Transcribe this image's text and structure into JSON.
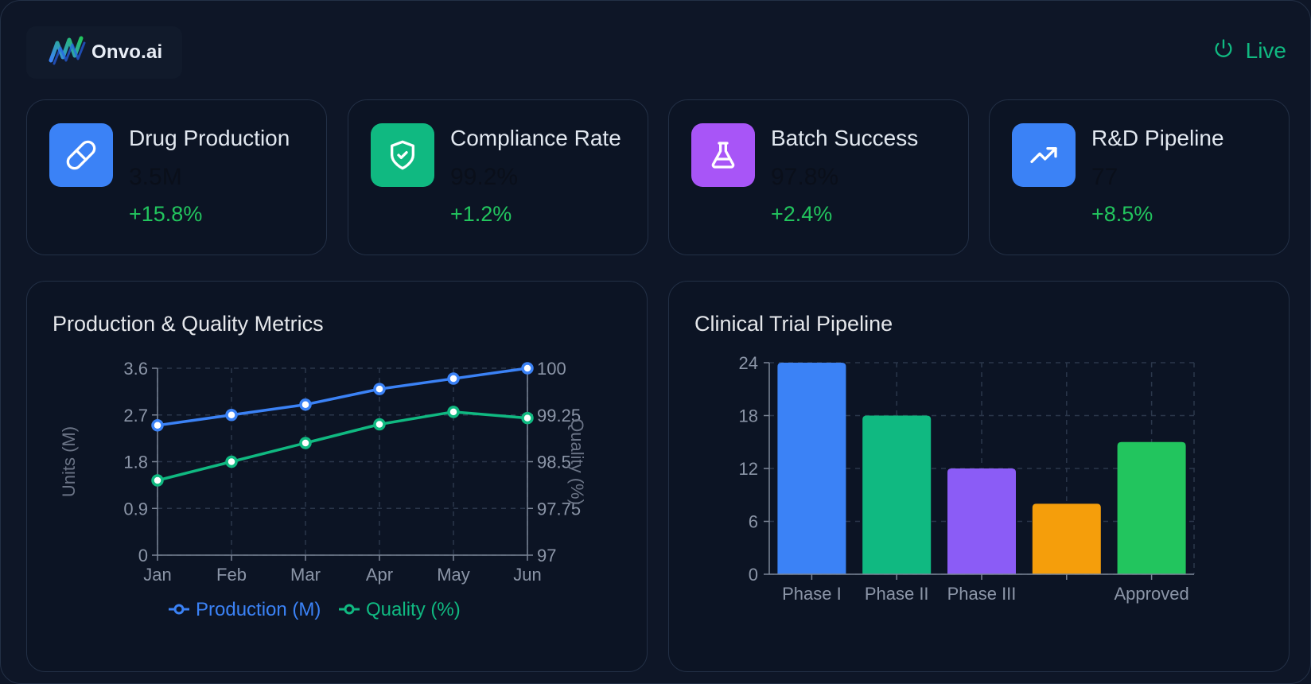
{
  "brand": {
    "name": "Onvo.ai",
    "logo_icon": "wave-logo-icon"
  },
  "status": {
    "label": "Live",
    "icon": "power-icon",
    "color": "#10b981"
  },
  "kpis": [
    {
      "title": "Drug Production",
      "value": "3.5M",
      "change": "+15.8%",
      "icon": "pill-icon",
      "color": "#3b82f6"
    },
    {
      "title": "Compliance Rate",
      "value": "99.2%",
      "change": "+1.2%",
      "icon": "shield-check-icon",
      "color": "#10b981"
    },
    {
      "title": "Batch Success",
      "value": "97.8%",
      "change": "+2.4%",
      "icon": "flask-icon",
      "color": "#a855f7"
    },
    {
      "title": "R&D Pipeline",
      "value": "77",
      "change": "+8.5%",
      "icon": "trending-up-icon",
      "color": "#3b82f6"
    }
  ],
  "charts": {
    "line": {
      "title": "Production & Quality Metrics"
    },
    "bar": {
      "title": "Clinical Trial Pipeline"
    }
  },
  "chart_data": [
    {
      "type": "line",
      "title": "Production & Quality Metrics",
      "categories": [
        "Jan",
        "Feb",
        "Mar",
        "Apr",
        "May",
        "Jun"
      ],
      "ylabel": "Units (M)",
      "ylabel_right": "Quality (%)",
      "ylim": [
        0,
        3.6
      ],
      "yticks": [
        "0",
        "0.9",
        "1.8",
        "2.7",
        "3.6"
      ],
      "ylim_right": [
        97,
        100
      ],
      "yticks_right": [
        "97",
        "97.75",
        "98.5",
        "99.25",
        "100"
      ],
      "grid": true,
      "legend": "bottom",
      "series": [
        {
          "name": "Production (M)",
          "axis": "left",
          "color": "#3b82f6",
          "values": [
            2.5,
            2.7,
            2.9,
            3.2,
            3.4,
            3.6
          ]
        },
        {
          "name": "Quality (%)",
          "axis": "right",
          "color": "#10b981",
          "values": [
            98.2,
            98.5,
            98.8,
            99.1,
            99.3,
            99.2
          ]
        }
      ]
    },
    {
      "type": "bar",
      "title": "Clinical Trial Pipeline",
      "categories": [
        "Phase I",
        "Phase II",
        "Phase III",
        "",
        "Approved"
      ],
      "values": [
        24,
        18,
        12,
        8,
        15
      ],
      "colors": [
        "#3b82f6",
        "#10b981",
        "#8b5cf6",
        "#f59e0b",
        "#22c55e"
      ],
      "ylim": [
        0,
        24
      ],
      "yticks": [
        "0",
        "6",
        "12",
        "18",
        "24"
      ],
      "grid": true
    }
  ]
}
